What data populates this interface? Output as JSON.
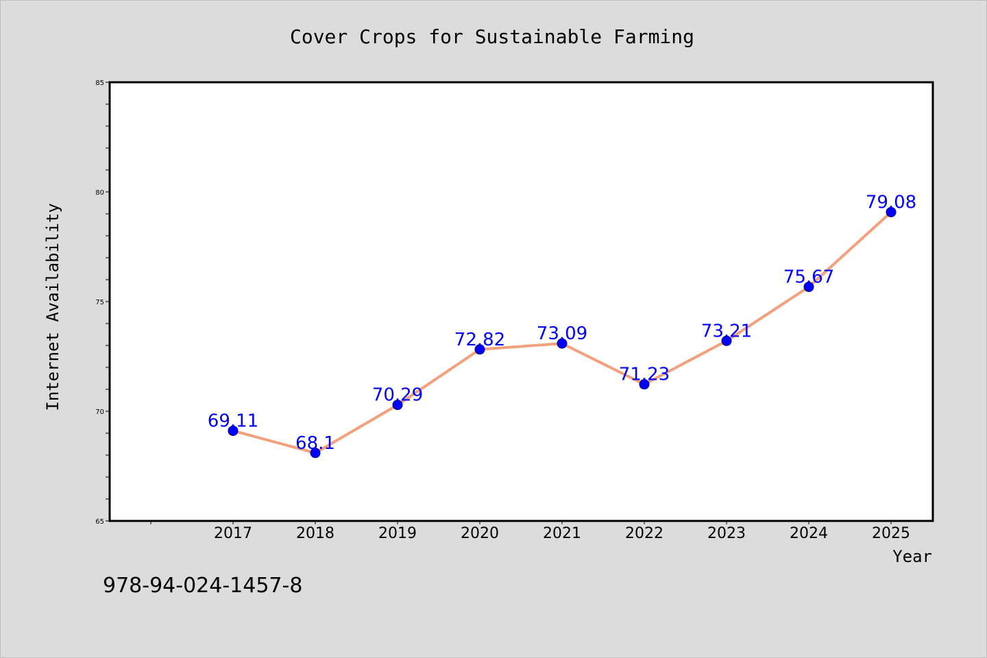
{
  "chart_data": {
    "type": "line",
    "title": "Cover Crops for Sustainable Farming",
    "xlabel": "Year",
    "ylabel": "Internet Availability",
    "categories": [
      "2017",
      "2018",
      "2019",
      "2020",
      "2021",
      "2022",
      "2023",
      "2024",
      "2025"
    ],
    "series": [
      {
        "values": [
          69.11,
          68.1,
          70.29,
          72.82,
          73.09,
          71.23,
          73.21,
          75.67,
          79.08
        ],
        "labels": [
          "69.11",
          "68.1",
          "70.29",
          "72.82",
          "73.09",
          "71.23",
          "73.21",
          "75.67",
          "79.08"
        ]
      }
    ],
    "ylim": [
      65,
      85
    ],
    "yticks": [
      "65",
      "70",
      "75",
      "80",
      "85"
    ],
    "grid": false,
    "line_color": "#f4a07c",
    "marker_color": "#0000ff",
    "label_color": "#0000ff"
  },
  "footer": {
    "isbn": "978-94-024-1457-8"
  }
}
